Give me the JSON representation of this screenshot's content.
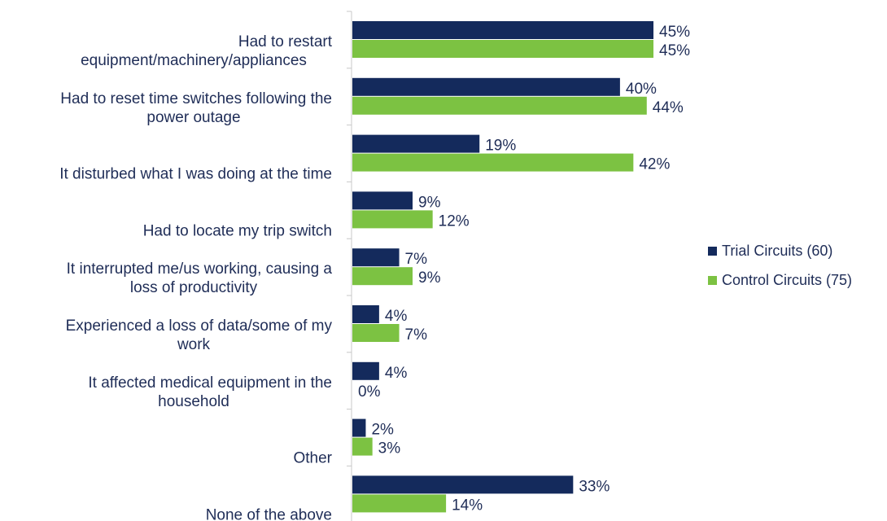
{
  "chart_data": {
    "type": "bar",
    "orientation": "horizontal",
    "categories": [
      [
        "Had to restart",
        "equipment/machinery/appliances"
      ],
      [
        "Had to reset time switches following the",
        "power outage"
      ],
      [
        "It disturbed what I was doing at the time"
      ],
      [
        "Had to locate my trip switch"
      ],
      [
        "It interrupted me/us working, causing a",
        "loss of productivity"
      ],
      [
        "Experienced a loss of data/some of my",
        "work"
      ],
      [
        "It affected medical equipment in the",
        "household"
      ],
      [
        "Other"
      ],
      [
        "None of the above"
      ]
    ],
    "series": [
      {
        "name": "Trial Circuits (60)",
        "color": "#142a5c",
        "values": [
          45,
          40,
          19,
          9,
          7,
          4,
          4,
          2,
          33
        ],
        "labels": [
          "45%",
          "40%",
          "19%",
          "9%",
          "7%",
          "4%",
          "4%",
          "2%",
          "33%"
        ]
      },
      {
        "name": "Control Circuits (75)",
        "color": "#7cc242",
        "values": [
          45,
          44,
          42,
          12,
          9,
          7,
          0,
          3,
          14
        ],
        "labels": [
          "45%",
          "44%",
          "42%",
          "12%",
          "9%",
          "7%",
          "0%",
          "3%",
          "14%"
        ]
      }
    ],
    "xlim": [
      0,
      50
    ],
    "grid": false,
    "legend_position": "right",
    "title": "",
    "xlabel": "",
    "ylabel": ""
  }
}
